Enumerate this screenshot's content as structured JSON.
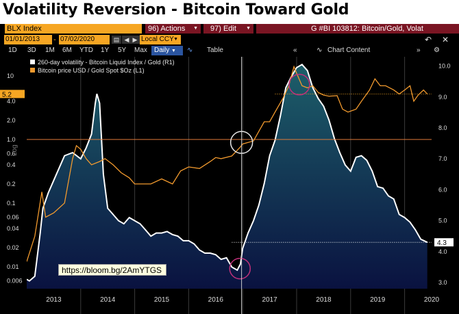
{
  "headline": "Volatility Reversion - Bitcoin Toward Gold",
  "toolbar": {
    "security": "BLX Index",
    "actions_label": "96) Actions",
    "edit_label": "97) Edit",
    "ticker_title": "G #BI 103812: Bitcoin/Gold, Volat",
    "start_date": "01/01/2013",
    "end_date": "07/02/2020",
    "currency": "Local CCY",
    "periods": [
      "1D",
      "3D",
      "1M",
      "6M",
      "YTD",
      "1Y",
      "5Y",
      "Max"
    ],
    "frequency": "Daily",
    "table_label": "Table",
    "chart_content_label": "Chart Content"
  },
  "link_text": "https://bloom.bg/2AmYTGS",
  "colors": {
    "accent_orange": "#f6a623",
    "bloomberg_red": "#7a1523",
    "area_top": "#1d5f6a",
    "area_bottom": "#0a1240",
    "gold_line": "#f29a2e",
    "vol_line": "#ffffff",
    "ring_pink": "#c0307a",
    "ring_white": "#e8e8e8"
  },
  "chart_data": {
    "type": "line",
    "title": "Volatility Reversion - Bitcoin Toward Gold",
    "ylabel_left": "Log",
    "x_ticks": [
      "2013",
      "2014",
      "2015",
      "2016",
      "2017",
      "2018",
      "2019",
      "2020"
    ],
    "x_range": [
      2013.0,
      2020.5
    ],
    "left_axis": {
      "scale": "log",
      "ticks": [
        "10",
        "4.0",
        "2.0",
        "1.0",
        "0.6",
        "0.4",
        "0.2",
        "0.1",
        "0.06",
        "0.04",
        "0.02",
        "0.01",
        "0.006"
      ],
      "tick_values": [
        10,
        4,
        2,
        1,
        0.6,
        0.4,
        0.2,
        0.1,
        0.06,
        0.04,
        0.02,
        0.01,
        0.006
      ],
      "range": [
        0.0045,
        20
      ],
      "last_value_label": "5.2",
      "reference_line": 1.0
    },
    "right_axis": {
      "scale": "linear",
      "ticks": [
        "10.0",
        "9.0",
        "8.0",
        "7.0",
        "6.0",
        "5.0",
        "4.0",
        "3.0"
      ],
      "tick_values": [
        10,
        9,
        8,
        7,
        6,
        5,
        4,
        3
      ],
      "range": [
        2.8,
        10.3
      ],
      "last_value_label": "4.3"
    },
    "legend": [
      {
        "name": "260-day volatility - Bitcoin Liquid Index / Gold (R1)",
        "color": "#ffffff"
      },
      {
        "name": "Bitcoin price USD / Gold Spot $Oz (L1)",
        "color": "#f29a2e"
      }
    ],
    "legend_position": "top-left",
    "series": [
      {
        "name": "260-day volatility - Bitcoin Liquid Index / Gold (R1)",
        "axis": "right",
        "style": "area",
        "points": [
          [
            2013.0,
            3.1
          ],
          [
            2013.05,
            3.05
          ],
          [
            2013.15,
            3.2
          ],
          [
            2013.25,
            4.6
          ],
          [
            2013.3,
            5.4
          ],
          [
            2013.4,
            5.9
          ],
          [
            2013.55,
            6.5
          ],
          [
            2013.7,
            7.1
          ],
          [
            2013.85,
            7.2
          ],
          [
            2014.0,
            7.0
          ],
          [
            2014.1,
            7.35
          ],
          [
            2014.2,
            7.8
          ],
          [
            2014.27,
            8.8
          ],
          [
            2014.3,
            9.1
          ],
          [
            2014.35,
            8.8
          ],
          [
            2014.42,
            6.5
          ],
          [
            2014.5,
            5.4
          ],
          [
            2014.6,
            5.2
          ],
          [
            2014.7,
            5.0
          ],
          [
            2014.8,
            4.9
          ],
          [
            2014.9,
            5.1
          ],
          [
            2015.0,
            5.0
          ],
          [
            2015.1,
            4.9
          ],
          [
            2015.2,
            4.7
          ],
          [
            2015.3,
            4.5
          ],
          [
            2015.4,
            4.6
          ],
          [
            2015.5,
            4.6
          ],
          [
            2015.6,
            4.65
          ],
          [
            2015.7,
            4.55
          ],
          [
            2015.8,
            4.5
          ],
          [
            2015.9,
            4.35
          ],
          [
            2016.0,
            4.35
          ],
          [
            2016.1,
            4.25
          ],
          [
            2016.2,
            4.05
          ],
          [
            2016.3,
            3.95
          ],
          [
            2016.4,
            3.95
          ],
          [
            2016.5,
            3.9
          ],
          [
            2016.6,
            3.75
          ],
          [
            2016.7,
            3.8
          ],
          [
            2016.8,
            3.5
          ],
          [
            2016.9,
            3.4
          ],
          [
            2016.96,
            3.6
          ],
          [
            2017.0,
            4.1
          ],
          [
            2017.1,
            4.6
          ],
          [
            2017.2,
            5.0
          ],
          [
            2017.3,
            5.5
          ],
          [
            2017.4,
            6.2
          ],
          [
            2017.5,
            7.1
          ],
          [
            2017.6,
            7.6
          ],
          [
            2017.7,
            8.4
          ],
          [
            2017.8,
            9.3
          ],
          [
            2017.9,
            9.65
          ],
          [
            2018.0,
            9.95
          ],
          [
            2018.1,
            10.05
          ],
          [
            2018.2,
            9.85
          ],
          [
            2018.3,
            9.3
          ],
          [
            2018.4,
            8.95
          ],
          [
            2018.5,
            8.7
          ],
          [
            2018.6,
            8.25
          ],
          [
            2018.7,
            7.65
          ],
          [
            2018.8,
            7.2
          ],
          [
            2018.9,
            6.8
          ],
          [
            2019.0,
            6.6
          ],
          [
            2019.1,
            7.05
          ],
          [
            2019.2,
            7.1
          ],
          [
            2019.3,
            6.95
          ],
          [
            2019.4,
            6.6
          ],
          [
            2019.5,
            6.1
          ],
          [
            2019.6,
            6.05
          ],
          [
            2019.7,
            5.8
          ],
          [
            2019.8,
            5.7
          ],
          [
            2019.9,
            5.2
          ],
          [
            2020.0,
            5.1
          ],
          [
            2020.1,
            4.95
          ],
          [
            2020.2,
            4.7
          ],
          [
            2020.3,
            4.4
          ],
          [
            2020.42,
            4.3
          ]
        ]
      },
      {
        "name": "Bitcoin price USD / Gold Spot $Oz (L1)",
        "axis": "left",
        "style": "line",
        "points": [
          [
            2013.0,
            0.012
          ],
          [
            2013.15,
            0.03
          ],
          [
            2013.28,
            0.15
          ],
          [
            2013.35,
            0.06
          ],
          [
            2013.5,
            0.07
          ],
          [
            2013.7,
            0.1
          ],
          [
            2013.85,
            0.5
          ],
          [
            2013.92,
            0.8
          ],
          [
            2014.0,
            0.7
          ],
          [
            2014.1,
            0.5
          ],
          [
            2014.2,
            0.4
          ],
          [
            2014.35,
            0.45
          ],
          [
            2014.45,
            0.5
          ],
          [
            2014.6,
            0.4
          ],
          [
            2014.75,
            0.3
          ],
          [
            2014.9,
            0.25
          ],
          [
            2015.0,
            0.2
          ],
          [
            2015.1,
            0.2
          ],
          [
            2015.3,
            0.2
          ],
          [
            2015.5,
            0.24
          ],
          [
            2015.7,
            0.2
          ],
          [
            2015.85,
            0.32
          ],
          [
            2016.0,
            0.37
          ],
          [
            2016.2,
            0.35
          ],
          [
            2016.4,
            0.45
          ],
          [
            2016.5,
            0.52
          ],
          [
            2016.6,
            0.5
          ],
          [
            2016.8,
            0.55
          ],
          [
            2016.95,
            0.75
          ],
          [
            2017.0,
            0.85
          ],
          [
            2017.2,
            0.95
          ],
          [
            2017.4,
            1.9
          ],
          [
            2017.5,
            1.9
          ],
          [
            2017.6,
            2.7
          ],
          [
            2017.75,
            4.5
          ],
          [
            2017.85,
            6.8
          ],
          [
            2017.95,
            14.0
          ],
          [
            2018.0,
            11.0
          ],
          [
            2018.1,
            7.0
          ],
          [
            2018.2,
            6.5
          ],
          [
            2018.3,
            7.0
          ],
          [
            2018.4,
            5.5
          ],
          [
            2018.5,
            5.0
          ],
          [
            2018.6,
            4.8
          ],
          [
            2018.75,
            4.9
          ],
          [
            2018.85,
            3.0
          ],
          [
            2018.95,
            2.7
          ],
          [
            2019.1,
            3.0
          ],
          [
            2019.2,
            4.0
          ],
          [
            2019.35,
            6.0
          ],
          [
            2019.45,
            9.0
          ],
          [
            2019.55,
            7.0
          ],
          [
            2019.65,
            7.0
          ],
          [
            2019.8,
            6.0
          ],
          [
            2019.9,
            5.2
          ],
          [
            2020.0,
            6.0
          ],
          [
            2020.1,
            7.0
          ],
          [
            2020.17,
            4.0
          ],
          [
            2020.25,
            5.0
          ],
          [
            2020.35,
            6.0
          ],
          [
            2020.42,
            5.2
          ]
        ]
      }
    ],
    "annotations": [
      {
        "kind": "circle",
        "color": "white",
        "at": [
          2016.98,
          0.9
        ],
        "axis": "left"
      },
      {
        "kind": "circle",
        "color": "pink",
        "at": [
          2018.05,
          9.4
        ],
        "axis": "right"
      },
      {
        "kind": "circle",
        "color": "pink",
        "at": [
          2016.95,
          3.45
        ],
        "axis": "right"
      },
      {
        "kind": "vertical-line",
        "x": 2016.98
      }
    ]
  }
}
